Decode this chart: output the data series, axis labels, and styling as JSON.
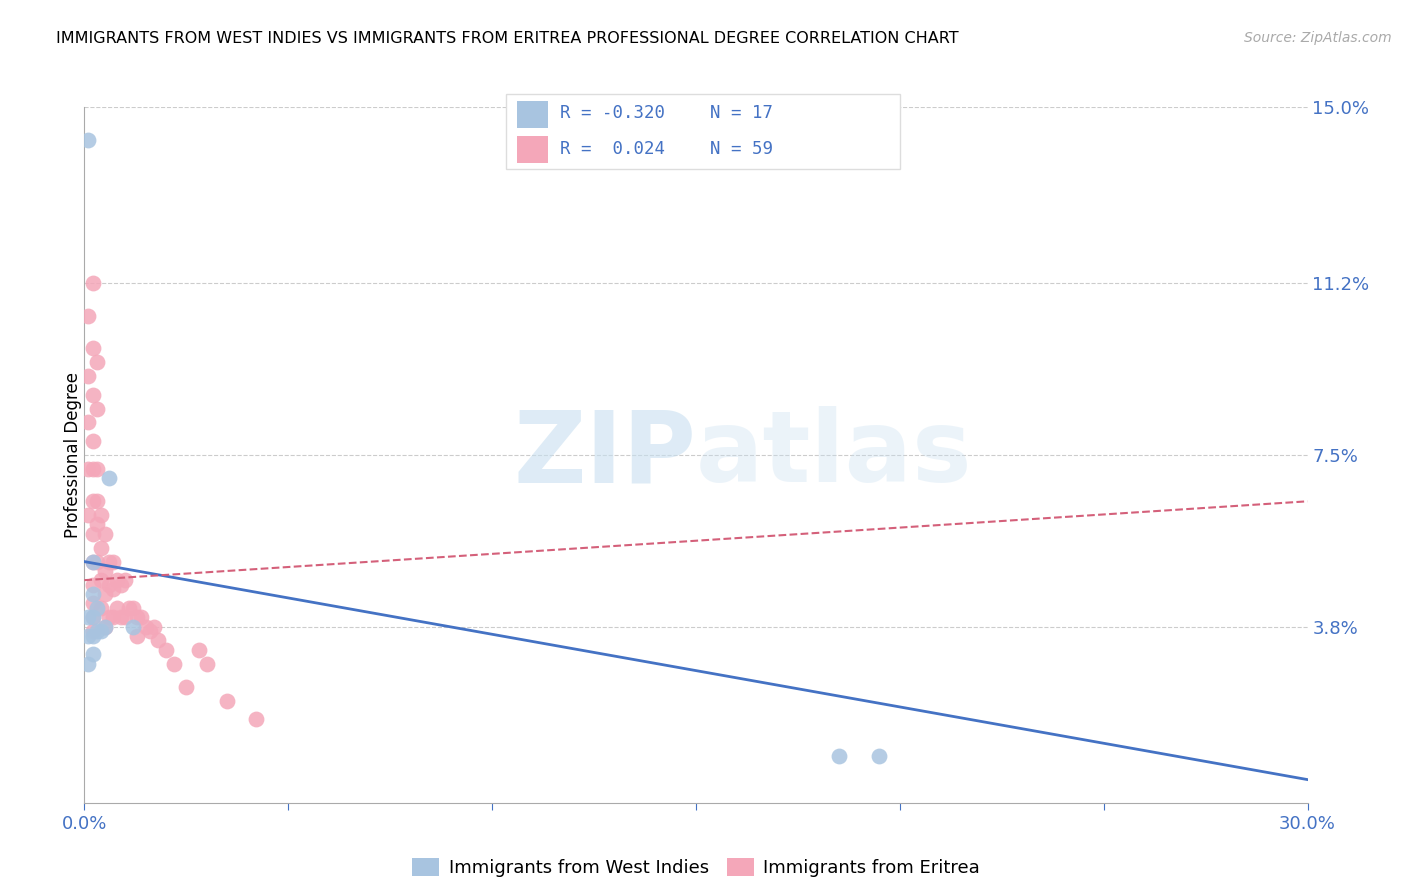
{
  "title": "IMMIGRANTS FROM WEST INDIES VS IMMIGRANTS FROM ERITREA PROFESSIONAL DEGREE CORRELATION CHART",
  "source": "Source: ZipAtlas.com",
  "ylabel": "Professional Degree",
  "xlim": [
    0.0,
    0.3
  ],
  "ylim": [
    0.0,
    0.15
  ],
  "ytick_positions": [
    0.038,
    0.075,
    0.112,
    0.15
  ],
  "ytick_labels": [
    "3.8%",
    "7.5%",
    "11.2%",
    "15.0%"
  ],
  "color_west_indies": "#a8c4e0",
  "color_eritrea": "#f4a7b9",
  "line_color_west_indies": "#4472c4",
  "line_color_eritrea": "#d4607a",
  "R_west_indies": -0.32,
  "N_west_indies": 17,
  "R_eritrea": 0.024,
  "N_eritrea": 59,
  "watermark_zip": "ZIP",
  "watermark_atlas": "atlas",
  "wi_trend_x0": 0.0,
  "wi_trend_y0": 0.052,
  "wi_trend_x1": 0.3,
  "wi_trend_y1": 0.005,
  "er_trend_x0": 0.0,
  "er_trend_y0": 0.048,
  "er_trend_x1": 0.3,
  "er_trend_y1": 0.065,
  "west_indies_x": [
    0.001,
    0.001,
    0.001,
    0.001,
    0.002,
    0.002,
    0.002,
    0.002,
    0.002,
    0.003,
    0.003,
    0.004,
    0.005,
    0.006,
    0.012,
    0.185,
    0.195
  ],
  "west_indies_y": [
    0.143,
    0.04,
    0.036,
    0.03,
    0.052,
    0.045,
    0.04,
    0.036,
    0.032,
    0.042,
    0.037,
    0.037,
    0.038,
    0.07,
    0.038,
    0.01,
    0.01
  ],
  "eritrea_x": [
    0.001,
    0.001,
    0.001,
    0.001,
    0.001,
    0.002,
    0.002,
    0.002,
    0.002,
    0.002,
    0.002,
    0.002,
    0.002,
    0.002,
    0.002,
    0.002,
    0.002,
    0.003,
    0.003,
    0.003,
    0.003,
    0.003,
    0.003,
    0.004,
    0.004,
    0.004,
    0.004,
    0.005,
    0.005,
    0.005,
    0.005,
    0.006,
    0.006,
    0.006,
    0.007,
    0.007,
    0.007,
    0.008,
    0.008,
    0.009,
    0.009,
    0.01,
    0.01,
    0.011,
    0.012,
    0.013,
    0.013,
    0.014,
    0.015,
    0.016,
    0.017,
    0.018,
    0.02,
    0.022,
    0.025,
    0.028,
    0.03,
    0.035,
    0.042
  ],
  "eritrea_y": [
    0.105,
    0.092,
    0.082,
    0.072,
    0.062,
    0.112,
    0.098,
    0.088,
    0.078,
    0.072,
    0.065,
    0.058,
    0.052,
    0.047,
    0.043,
    0.04,
    0.037,
    0.095,
    0.085,
    0.072,
    0.065,
    0.06,
    0.052,
    0.062,
    0.055,
    0.048,
    0.042,
    0.058,
    0.05,
    0.045,
    0.038,
    0.052,
    0.047,
    0.04,
    0.052,
    0.046,
    0.04,
    0.048,
    0.042,
    0.047,
    0.04,
    0.048,
    0.04,
    0.042,
    0.042,
    0.04,
    0.036,
    0.04,
    0.038,
    0.037,
    0.038,
    0.035,
    0.033,
    0.03,
    0.025,
    0.033,
    0.03,
    0.022,
    0.018
  ]
}
